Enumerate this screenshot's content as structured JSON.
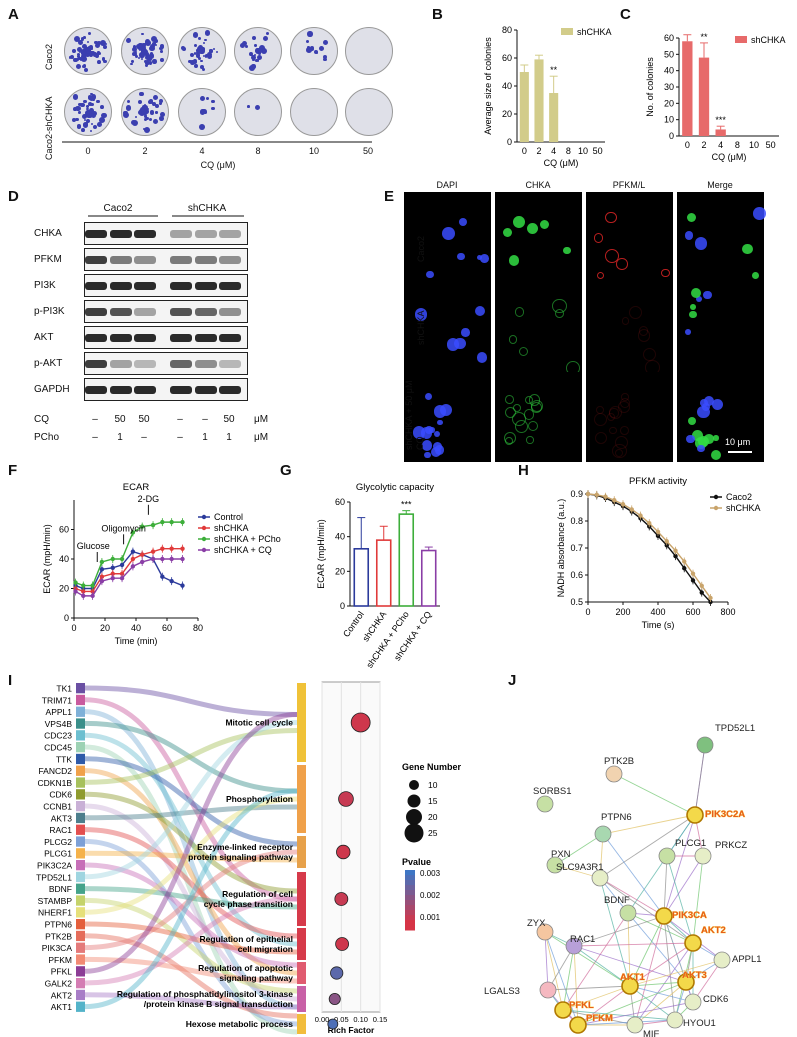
{
  "panel_A": {
    "letter": "A",
    "row_labels": [
      "Caco2",
      "Caco2-shCHKA"
    ],
    "x_ticks": [
      "0",
      "2",
      "4",
      "8",
      "10",
      "50"
    ],
    "x_label": "CQ (μM)"
  },
  "panel_B": {
    "letter": "B"
  },
  "panel_C": {
    "letter": "C"
  },
  "panel_D": {
    "letter": "D",
    "groups": [
      "Caco2",
      "shCHKA"
    ],
    "proteins": [
      "CHKA",
      "PFKM",
      "PI3K",
      "p-PI3K",
      "AKT",
      "p-AKT",
      "GAPDH"
    ],
    "cq_label": "CQ",
    "cq_values": [
      "–",
      "50",
      "50",
      "–",
      "–",
      "50",
      "μM"
    ],
    "pcho_label": "PCho",
    "pcho_values": [
      "–",
      "1",
      "–",
      "–",
      "1",
      "1",
      "μM"
    ]
  },
  "panel_E": {
    "letter": "E",
    "columns": [
      "DAPI",
      "CHKA",
      "PFKM/L",
      "Merge"
    ],
    "rows": [
      "Caco2",
      "shCHKA",
      "shCHKA + 50 μM CQ"
    ],
    "scale_bar": "10 μm"
  },
  "panel_F": {
    "letter": "F"
  },
  "panel_G": {
    "letter": "G"
  },
  "panel_H": {
    "letter": "H"
  },
  "panel_I": {
    "letter": "I"
  },
  "panel_J": {
    "letter": "J"
  },
  "colors": {
    "olive": "#d2cc8a",
    "red": "#e76a6a",
    "blue": "#2b3a9b",
    "green": "#3dae3a",
    "purple": "#8a3ea6",
    "black": "#111111",
    "tan": "#c9a46b"
  },
  "chart_data": [
    {
      "id": "B",
      "type": "bar",
      "categories": [
        "0",
        "2",
        "4",
        "8",
        "10",
        "50"
      ],
      "values": [
        50,
        59,
        35,
        0,
        0,
        0
      ],
      "errors": [
        5,
        3,
        12,
        0,
        0,
        0
      ],
      "annotations": [
        "",
        "",
        "**",
        "",
        "",
        ""
      ],
      "ylabel": "Average size of colonies",
      "xlabel": "CQ (μM)",
      "ylim": [
        0,
        80
      ],
      "yticks": [
        "0",
        "20",
        "40",
        "60",
        "80"
      ],
      "legend": "shCHKA",
      "color": "#d2cc8a"
    },
    {
      "id": "C",
      "type": "bar",
      "categories": [
        "0",
        "2",
        "4",
        "8",
        "10",
        "50"
      ],
      "values": [
        58,
        48,
        4,
        0,
        0,
        0
      ],
      "errors": [
        4,
        9,
        2,
        0,
        0,
        0
      ],
      "annotations": [
        "",
        "**",
        "***",
        "",
        "",
        ""
      ],
      "ylabel": "No. of colonies",
      "xlabel": "CQ (μM)",
      "ylim": [
        0,
        60
      ],
      "yticks": [
        "0",
        "10",
        "20",
        "30",
        "40",
        "50",
        "60"
      ],
      "legend": "shCHKA",
      "color": "#e76a6a"
    },
    {
      "id": "F",
      "type": "line",
      "title": "ECAR",
      "xlabel": "Time (min)",
      "ylabel": "ECAR (mpH/min)",
      "xlim": [
        0,
        80
      ],
      "ylim": [
        0,
        80
      ],
      "xticks": [
        "0",
        "20",
        "40",
        "60",
        "80"
      ],
      "yticks": [
        "0",
        "20",
        "40",
        "60"
      ],
      "annotations": [
        "Glucose",
        "Oligomycin",
        "2-DG"
      ],
      "x": [
        1,
        6,
        12,
        18,
        25,
        31,
        38,
        44,
        51,
        57,
        63,
        70
      ],
      "series": [
        {
          "name": "Control",
          "color": "#2b3a9b",
          "values": [
            22,
            20,
            20,
            33,
            34,
            36,
            45,
            43,
            40,
            28,
            25,
            22
          ]
        },
        {
          "name": "shCHKA",
          "color": "#e03a3a",
          "values": [
            20,
            18,
            18,
            28,
            30,
            30,
            40,
            43,
            45,
            47,
            47,
            47
          ]
        },
        {
          "name": "shCHKA + PCho",
          "color": "#3dae3a",
          "values": [
            24,
            22,
            22,
            38,
            40,
            40,
            58,
            62,
            63,
            65,
            65,
            65
          ]
        },
        {
          "name": "shCHKA + CQ",
          "color": "#8a3ea6",
          "values": [
            18,
            15,
            15,
            25,
            27,
            27,
            35,
            38,
            40,
            40,
            40,
            40
          ]
        }
      ]
    },
    {
      "id": "G",
      "type": "bar",
      "title": "Glycolytic capacity",
      "categories": [
        "Control",
        "shCHKA",
        "shCHKA + PCho",
        "shCHKA + CQ"
      ],
      "values": [
        33,
        38,
        53,
        32
      ],
      "errors": [
        18,
        8,
        2,
        2
      ],
      "annotations": [
        "",
        "",
        "***",
        ""
      ],
      "colors": [
        "#2b3a9b",
        "#e03a3a",
        "#3dae3a",
        "#8a3ea6"
      ],
      "ylabel": "ECAR (mpH/min)",
      "ylim": [
        0,
        60
      ],
      "yticks": [
        "0",
        "20",
        "40",
        "60"
      ]
    },
    {
      "id": "H",
      "type": "line",
      "title": "PFKM activity",
      "xlabel": "Time (s)",
      "ylabel": "NADH absorbance (a.u.)",
      "xlim": [
        0,
        800
      ],
      "ylim": [
        0.5,
        0.9
      ],
      "xticks": [
        "0",
        "200",
        "400",
        "600",
        "800"
      ],
      "yticks": [
        "0.5",
        "0.6",
        "0.7",
        "0.8",
        "0.9"
      ],
      "x": [
        0,
        50,
        100,
        150,
        200,
        250,
        300,
        350,
        400,
        450,
        500,
        550,
        600,
        650,
        700
      ],
      "series": [
        {
          "name": "Caco2",
          "color": "#111111",
          "values": [
            0.9,
            0.895,
            0.885,
            0.87,
            0.855,
            0.835,
            0.81,
            0.78,
            0.745,
            0.71,
            0.67,
            0.625,
            0.58,
            0.535,
            0.5
          ]
        },
        {
          "name": "shCHKA",
          "color": "#c9a46b",
          "values": [
            0.9,
            0.897,
            0.89,
            0.877,
            0.862,
            0.843,
            0.82,
            0.792,
            0.76,
            0.725,
            0.69,
            0.65,
            0.605,
            0.56,
            0.515
          ]
        }
      ]
    },
    {
      "id": "I",
      "type": "scatter",
      "xlabel": "Rich Factor",
      "xlim": [
        0,
        0.15
      ],
      "xticks": [
        "0.00",
        "0.05",
        "0.10",
        "0.15"
      ],
      "genes": [
        "TK1",
        "TRIM71",
        "APPL1",
        "VPS4B",
        "CDC23",
        "CDC45",
        "TTK",
        "FANCD2",
        "CDKN1B",
        "CDK6",
        "CCNB1",
        "AKT3",
        "RAC1",
        "PLCG2",
        "PLCG1",
        "PIK3C2A",
        "TPD52L1",
        "BDNF",
        "STAMBP",
        "NHERF1",
        "PTPN6",
        "PTK2B",
        "PIK3CA",
        "PFKM",
        "PFKL",
        "GALK2",
        "AKT2",
        "AKT1"
      ],
      "terms": [
        "Mitotic cell cycle",
        "Phosphorylation",
        "Enzyme-linked receptor protein signaling pathway",
        "Regulation of cell cycle phase transition",
        "Regulation of epithelial cell migration",
        "Regulation of apoptotic signaling pathway",
        "Regulation of phosphatidylinositol 3-kinase /protein kinase B signal transduction",
        "Hexose metabolic process"
      ],
      "rich_factor": [
        0.1,
        0.062,
        0.055,
        0.05,
        0.052,
        0.038,
        0.033,
        0.028
      ],
      "gene_number": [
        25,
        18,
        16,
        15,
        15,
        14,
        12,
        10
      ],
      "pvalue": [
        0.0011,
        0.0012,
        0.0011,
        0.0012,
        0.0011,
        0.0026,
        0.002,
        0.0028
      ],
      "legend_size_title": "Gene Number",
      "legend_sizes": [
        "10",
        "15",
        "20",
        "25"
      ],
      "legend_color_title": "Pvalue",
      "legend_colors": [
        "0.003",
        "0.002",
        "0.001"
      ]
    }
  ],
  "panel_J_network": {
    "nodes": [
      {
        "label": "TPD52L1",
        "hub": false
      },
      {
        "label": "PTK2B",
        "hub": false
      },
      {
        "label": "PIK3C2A",
        "hub": true
      },
      {
        "label": "SORBS1",
        "hub": false
      },
      {
        "label": "PTPN6",
        "hub": false
      },
      {
        "label": "PLCG1",
        "hub": false
      },
      {
        "label": "PRKCZ",
        "hub": false
      },
      {
        "label": "PXN",
        "hub": false
      },
      {
        "label": "SLC9A3R1",
        "hub": false
      },
      {
        "label": "BDNF",
        "hub": false
      },
      {
        "label": "PIK3CA",
        "hub": true
      },
      {
        "label": "ZYX",
        "hub": false
      },
      {
        "label": "RAC1",
        "hub": false
      },
      {
        "label": "AKT2",
        "hub": true
      },
      {
        "label": "APPL1",
        "hub": false
      },
      {
        "label": "LGALS3",
        "hub": false
      },
      {
        "label": "AKT1",
        "hub": true
      },
      {
        "label": "AKT3",
        "hub": true
      },
      {
        "label": "PFKL",
        "hub": true
      },
      {
        "label": "CDK6",
        "hub": false
      },
      {
        "label": "PFKM",
        "hub": true
      },
      {
        "label": "MIF",
        "hub": false
      },
      {
        "label": "HYOU1",
        "hub": false
      }
    ]
  }
}
